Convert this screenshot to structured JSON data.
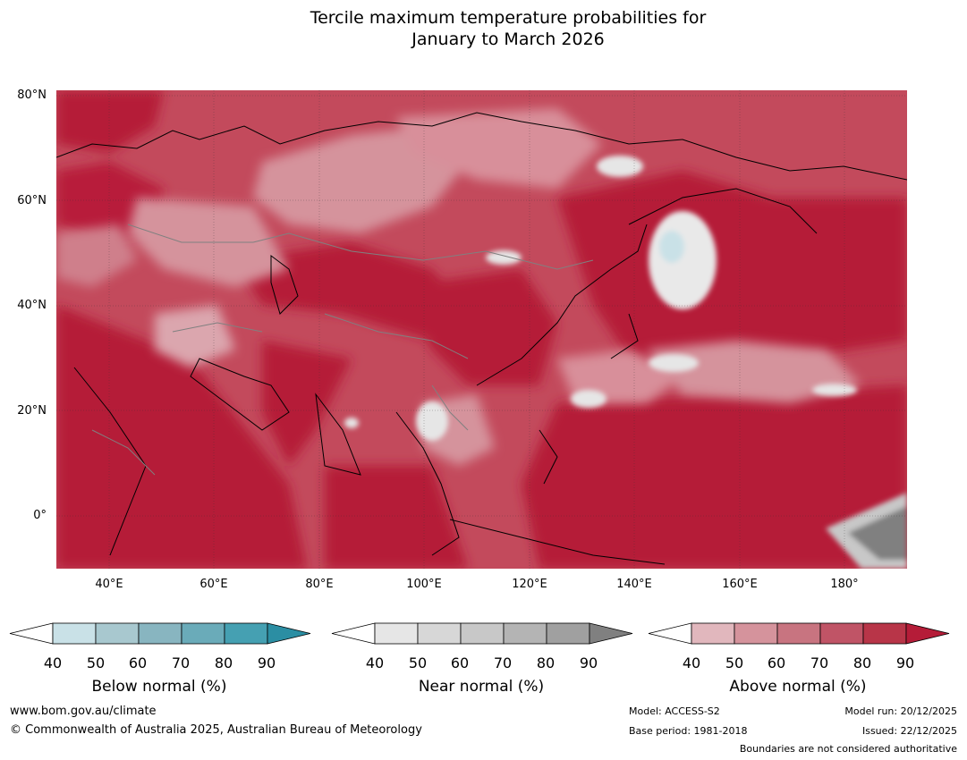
{
  "title": {
    "line1": "Tercile maximum temperature probabilities for",
    "line2": "January to March 2026"
  },
  "axes": {
    "lat_labels": [
      "80°N",
      "60°N",
      "40°N",
      "20°N",
      "0°"
    ],
    "lon_labels": [
      "40°E",
      "60°E",
      "80°E",
      "100°E",
      "120°E",
      "140°E",
      "160°E",
      "180°"
    ],
    "lat_range": [
      -10,
      81
    ],
    "lon_range": [
      30,
      192
    ]
  },
  "legends": [
    {
      "name": "Below normal (%)",
      "ticks": [
        "40",
        "50",
        "60",
        "70",
        "80",
        "90"
      ],
      "colors": [
        "#ffffff",
        "#c9e1e7",
        "#a8c8cf",
        "#88b5c0",
        "#6aabb9",
        "#45a0b2",
        "#2b8ea3"
      ]
    },
    {
      "name": "Near normal (%)",
      "ticks": [
        "40",
        "50",
        "60",
        "70",
        "80",
        "90"
      ],
      "colors": [
        "#ffffff",
        "#e6e6e6",
        "#d7d7d7",
        "#c8c8c8",
        "#b4b4b4",
        "#a0a0a0",
        "#808080"
      ]
    },
    {
      "name": "Above normal (%)",
      "ticks": [
        "40",
        "50",
        "60",
        "70",
        "80",
        "90"
      ],
      "colors": [
        "#ffffff",
        "#e1b7bd",
        "#d5939c",
        "#c87480",
        "#c05466",
        "#b83548",
        "#b51c38"
      ]
    }
  ],
  "footer": {
    "website": "www.bom.gov.au/climate",
    "copyright": "© Commonwealth of Australia 2025, Australian Bureau of Meteorology",
    "model": "Model: ACCESS-S2",
    "base_period": "Base period: 1981-2018",
    "model_run": "Model run: 20/12/2025",
    "issued": "Issued: 22/12/2025",
    "disclaimer": "Boundaries are not considered authoritative"
  }
}
